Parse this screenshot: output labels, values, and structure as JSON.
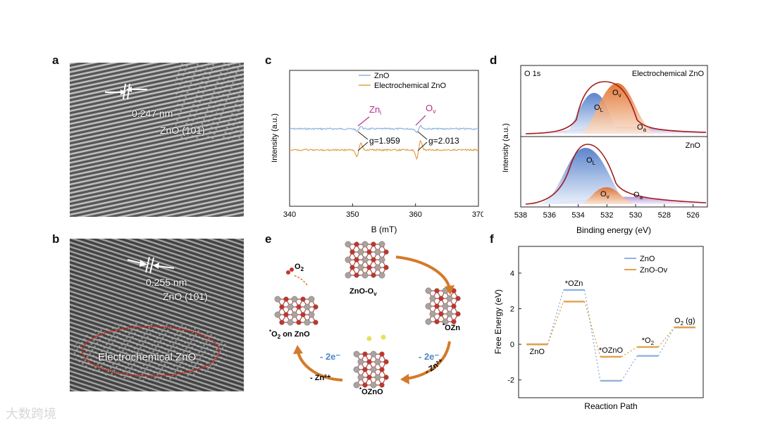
{
  "panels": {
    "a": {
      "letter": "a",
      "spacing": "0.247 nm",
      "plane": "ZnO (101)"
    },
    "b": {
      "letter": "b",
      "spacing": "0.255 nm",
      "plane": "ZnO (101)",
      "region": "Electrochemical ZnO"
    },
    "c": {
      "letter": "c"
    },
    "d": {
      "letter": "d",
      "title": "O 1s",
      "top_label": "Electrochemical ZnO",
      "bottom_label": "ZnO",
      "peaks": {
        "OL": "O",
        "OL_sub": "L",
        "Ov": "O",
        "Ov_sub": "v",
        "Oa": "O",
        "Oa_sub": "a"
      }
    },
    "e": {
      "letter": "e",
      "labels": {
        "o2": "O",
        "o2_sub": "2",
        "znoov": "ZnO-O",
        "znoov_sub": "v",
        "ozn": "OZn",
        "ozno": "OZnO",
        "o2zno_a": "O",
        "o2zno_sub": "2",
        "o2zno_b": " on ZnO",
        "two_e": "- 2e⁻",
        "zn2": "- Zn²⁺"
      }
    },
    "f": {
      "letter": "f"
    }
  },
  "chart_data": [
    {
      "id": "c",
      "type": "line",
      "xlabel": "B (mT)",
      "ylabel": "Intensity (a.u.)",
      "xlim": [
        340,
        370
      ],
      "xticks": [
        340,
        350,
        360,
        370
      ],
      "series": [
        {
          "name": "ZnO",
          "color": "#8fb3dd"
        },
        {
          "name": "Electrochemical ZnO",
          "color": "#e2a04a"
        }
      ],
      "annotations": [
        {
          "text": "Zn",
          "sub": "i",
          "x": 351
        },
        {
          "text": "O",
          "sub": "v",
          "x": 360.5
        },
        {
          "text": "g=1.959",
          "x": 351
        },
        {
          "text": "g=2.013",
          "x": 360.5
        }
      ]
    },
    {
      "id": "d",
      "type": "area",
      "xlabel": "Binding energy (eV)",
      "ylabel": "Intensity (a.u.)",
      "xlim": [
        538,
        525
      ],
      "xticks": [
        526,
        528,
        530,
        532,
        534,
        536,
        538
      ]
    },
    {
      "id": "f",
      "type": "line",
      "xlabel": "Reaction Path",
      "ylabel": "Free Energy (eV)",
      "ylim": [
        -3,
        5.5
      ],
      "yticks": [
        -2,
        0,
        2,
        4
      ],
      "steps": [
        "ZnO",
        "*OZn",
        "*OZnO",
        "*O2",
        "O2 (g)"
      ],
      "step_labels": [
        {
          "text": "ZnO"
        },
        {
          "text": "*OZn"
        },
        {
          "text": "*OZnO"
        },
        {
          "text": "*O",
          "sub": "2"
        },
        {
          "text": "O",
          "sub": "2",
          "tail": " (g)"
        }
      ],
      "series": [
        {
          "name": "ZnO",
          "color": "#8fb3dd",
          "values": [
            0,
            3.05,
            -2.05,
            -0.65,
            0.95
          ]
        },
        {
          "name": "ZnO-Ov",
          "color": "#e2a04a",
          "values": [
            0,
            2.4,
            -0.7,
            -0.15,
            0.95
          ]
        }
      ]
    }
  ],
  "watermark": "大数跨境"
}
